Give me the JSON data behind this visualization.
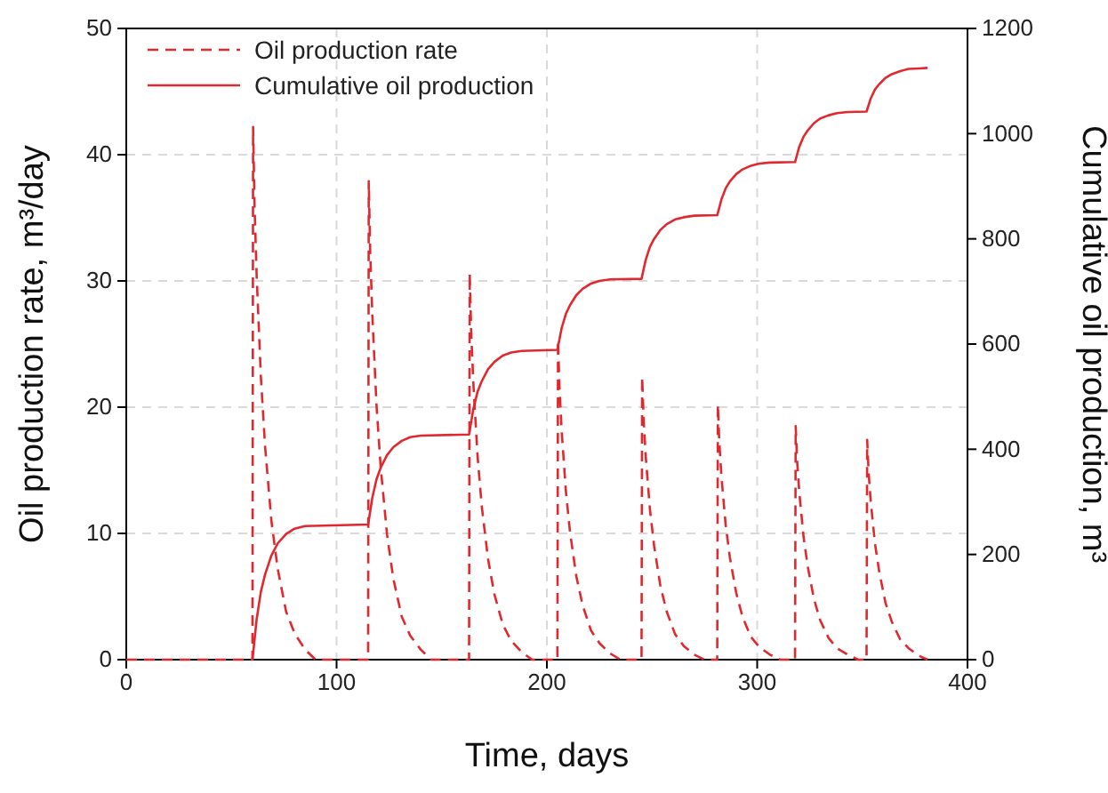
{
  "chart_data": {
    "type": "line",
    "xlabel": "Time, days",
    "ylabel": "Oil production rate, m³/day",
    "y2label": "Cumulative oil production, m³",
    "xlim": [
      0,
      400
    ],
    "xticks": [
      0,
      100,
      200,
      300,
      400
    ],
    "ylim": [
      0,
      50
    ],
    "yticks": [
      0,
      10,
      20,
      30,
      40,
      50
    ],
    "y2lim": [
      0,
      1200
    ],
    "y2ticks": [
      0,
      200,
      400,
      600,
      800,
      1000,
      1200
    ],
    "grid": true,
    "legend": "top left",
    "series": [
      {
        "name": "Oil production rate",
        "color": "#e0282e",
        "line_style": "dashed",
        "x": [
          0,
          60,
          60.3,
          61,
          62,
          64,
          66,
          69,
          72,
          76,
          80,
          85,
          90,
          115,
          115.3,
          116,
          117,
          119,
          121,
          124,
          127,
          131,
          135,
          140,
          145,
          163,
          163.3,
          164,
          165,
          167,
          169,
          172,
          175,
          179,
          183,
          188,
          193,
          205,
          205.3,
          206,
          207,
          209,
          211,
          214,
          217,
          221,
          225,
          230,
          235,
          245,
          245.3,
          246,
          247,
          249,
          251,
          254,
          257,
          261,
          265,
          270,
          275,
          281,
          281.3,
          282,
          283,
          285,
          287,
          290,
          293,
          297,
          301,
          306,
          311,
          318,
          318.3,
          319,
          320,
          322,
          324,
          327,
          330,
          334,
          338,
          343,
          348,
          352,
          352.3,
          353,
          354,
          356,
          358,
          361,
          364,
          368,
          372,
          377,
          381
        ],
        "values": [
          0,
          0,
          42.2,
          35.9,
          30.4,
          22.4,
          16.9,
          11.0,
          7.2,
          3.8,
          2.1,
          0.8,
          0,
          0,
          37.9,
          32.2,
          27.3,
          20.1,
          15.2,
          9.9,
          6.4,
          3.4,
          1.9,
          0.8,
          0,
          0,
          30.6,
          26.0,
          22.0,
          16.2,
          12.2,
          8.0,
          5.2,
          2.8,
          1.5,
          0.6,
          0,
          0,
          25.3,
          21.5,
          18.2,
          13.4,
          10.1,
          6.6,
          4.3,
          2.3,
          1.3,
          0.5,
          0,
          0,
          22.4,
          19.0,
          16.1,
          11.9,
          9.0,
          5.8,
          3.8,
          2.0,
          1.1,
          0.4,
          0,
          0,
          20.2,
          17.2,
          14.5,
          10.7,
          8.1,
          5.3,
          3.4,
          1.8,
          1.0,
          0.4,
          0,
          0,
          18.5,
          15.7,
          13.3,
          9.8,
          7.4,
          4.8,
          3.1,
          1.7,
          0.9,
          0.4,
          0,
          0,
          17.4,
          14.8,
          12.5,
          9.2,
          7.0,
          4.5,
          3.0,
          1.6,
          0.9,
          0.3,
          0
        ]
      },
      {
        "name": "Cumulative oil production",
        "color": "#e0282e",
        "line_style": "solid",
        "axis": "y2",
        "x": [
          60,
          62,
          64,
          66,
          69,
          72,
          76,
          80,
          85,
          115,
          117,
          119,
          121,
          124,
          127,
          131,
          135,
          140,
          163,
          165,
          167,
          169,
          172,
          175,
          179,
          183,
          188,
          205,
          207,
          209,
          211,
          214,
          217,
          221,
          225,
          230,
          245,
          247,
          249,
          251,
          254,
          257,
          261,
          265,
          270,
          281,
          283,
          285,
          287,
          290,
          293,
          297,
          301,
          306,
          318,
          320,
          322,
          324,
          327,
          330,
          334,
          338,
          343,
          352,
          354,
          356,
          358,
          361,
          364,
          368,
          372,
          377,
          381
        ],
        "values": [
          0,
          77,
          129,
          162,
          198,
          221,
          239,
          249,
          254,
          257,
          308,
          343,
          365,
          389,
          404,
          416,
          423,
          426,
          428,
          476,
          509,
          529,
          552,
          566,
          578,
          584,
          587,
          589,
          630,
          657,
          674,
          693,
          705,
          715,
          720,
          723,
          724,
          760,
          785,
          800,
          817,
          828,
          837,
          841,
          844,
          845,
          875,
          896,
          909,
          923,
          932,
          939,
          943,
          945,
          946,
          975,
          994,
          1006,
          1020,
          1029,
          1035,
          1039,
          1041,
          1042,
          1067,
          1084,
          1094,
          1106,
          1113,
          1119,
          1123,
          1124,
          1125
        ]
      }
    ]
  }
}
